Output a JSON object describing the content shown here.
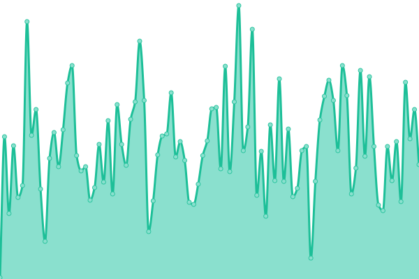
{
  "chart_data": {
    "type": "area",
    "title": "",
    "xlabel": "",
    "ylabel": "",
    "x": [
      0,
      1,
      2,
      3,
      4,
      5,
      6,
      7,
      8,
      9,
      10,
      11,
      12,
      13,
      14,
      15,
      16,
      17,
      18,
      19,
      20,
      21,
      22,
      23,
      24,
      25,
      26,
      27,
      28,
      29,
      30,
      31,
      32,
      33,
      34,
      35,
      36,
      37,
      38,
      39,
      40,
      41,
      42,
      43,
      44,
      45,
      46,
      47,
      48,
      49,
      50,
      51,
      52,
      53,
      54,
      55,
      56,
      57,
      58,
      59,
      60,
      61,
      62,
      63,
      64,
      65,
      66,
      67,
      68,
      69,
      70,
      71,
      72,
      73,
      74,
      75,
      76,
      77,
      78,
      79,
      80,
      81,
      82,
      83,
      84,
      85,
      86,
      87,
      88,
      89,
      90,
      91,
      92,
      93
    ],
    "values": [
      2,
      204,
      94,
      191,
      117,
      134,
      369,
      206,
      243,
      129,
      54,
      173,
      210,
      161,
      214,
      281,
      306,
      177,
      155,
      161,
      113,
      131,
      193,
      139,
      227,
      122,
      250,
      193,
      163,
      229,
      254,
      341,
      256,
      68,
      112,
      178,
      205,
      208,
      267,
      175,
      197,
      170,
      110,
      107,
      136,
      177,
      198,
      244,
      246,
      158,
      305,
      154,
      254,
      392,
      184,
      218,
      358,
      120,
      183,
      90,
      221,
      141,
      287,
      140,
      215,
      118,
      130,
      184,
      190,
      30,
      140,
      228,
      262,
      285,
      256,
      184,
      306,
      263,
      122,
      159,
      299,
      176,
      290,
      190,
      106,
      98,
      190,
      141,
      197,
      111,
      282,
      201,
      243,
      164
    ],
    "ylim": [
      0,
      400
    ],
    "grid": false,
    "axes": false,
    "markers": true,
    "colors": {
      "line": "#1dbf98",
      "fill": "#8ae0ce",
      "marker_fill": "#8ae0ce",
      "marker_stroke": "#2cc49f"
    }
  }
}
